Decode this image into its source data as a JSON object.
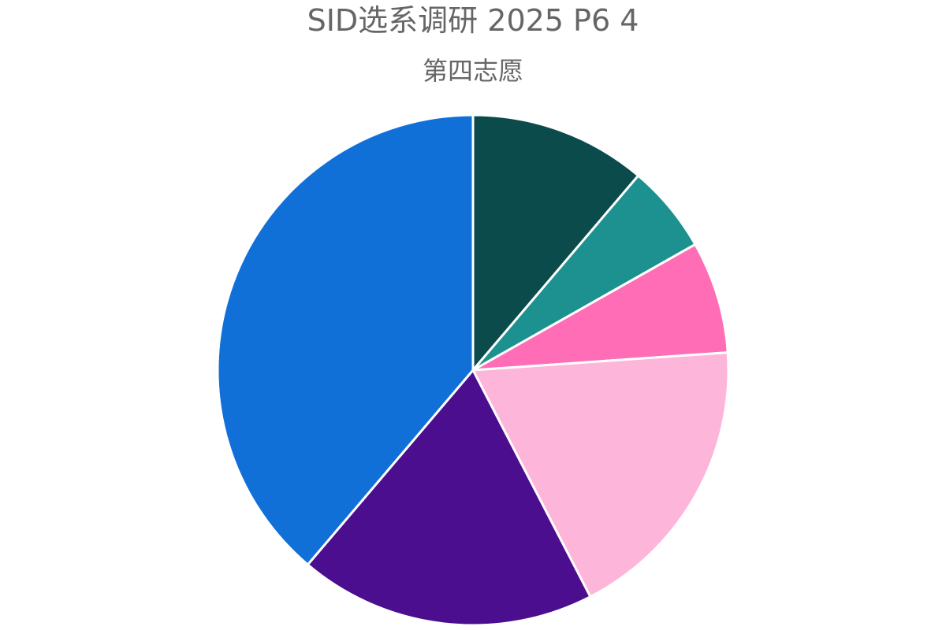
{
  "chart_data": {
    "type": "pie",
    "title": "SID选系调研 2025 P6 4",
    "subtitle": "第四志愿",
    "values": [
      11.2,
      5.6,
      7.1,
      18.5,
      18.8,
      38.8
    ],
    "colors": [
      "#0b4b4c",
      "#1d918f",
      "#fe6db6",
      "#feb5da",
      "#4a0e8f",
      "#1170d8"
    ],
    "slice_border_color": "#ffffff"
  }
}
